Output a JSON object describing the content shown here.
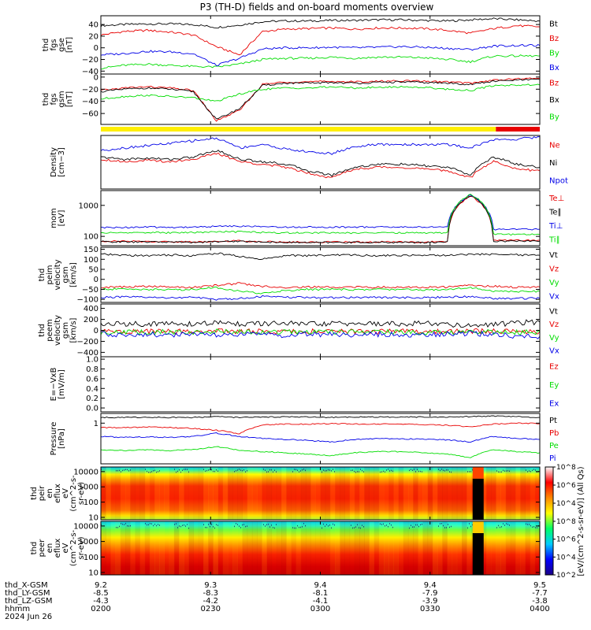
{
  "title": "P3 (TH-D) fields and on-board moments overview",
  "chart_data": {
    "type": "line",
    "title": "P3 (TH-D) fields and on-board moments overview",
    "time_range": [
      "0200",
      "0400"
    ],
    "time_axis": {
      "ticks": [
        "0200",
        "0230",
        "0300",
        "0330",
        "0400"
      ],
      "rows": [
        {
          "label": "thd_X-GSM",
          "values": [
            "9.2",
            "9.3",
            "9.4",
            "9.4",
            "9.5"
          ]
        },
        {
          "label": "thd_LY-GSM",
          "values": [
            "-8.5",
            "-8.3",
            "-8.1",
            "-7.9",
            "-7.7"
          ]
        },
        {
          "label": "thd_LZ-GSM",
          "values": [
            "-4.3",
            "-4.2",
            "-4.1",
            "-3.9",
            "-3.8"
          ]
        },
        {
          "label": "hhmm",
          "values": [
            "0200",
            "0230",
            "0300",
            "0330",
            "0400"
          ]
        }
      ],
      "date_label": "2024 Jun 26"
    },
    "mode_bar": {
      "segments": [
        {
          "color": "#ffee00",
          "from": "0200",
          "to": "0348"
        },
        {
          "color": "#e80000",
          "from": "0348",
          "to": "0400"
        }
      ]
    },
    "panels": [
      {
        "ylabel": [
          "thd",
          "fgs",
          "gse",
          "[nT]"
        ],
        "ylim": [
          -45,
          55
        ],
        "scale": "linear",
        "yticks": [
          "40",
          "20",
          "0",
          "−20",
          "−40"
        ],
        "ytick_values": [
          40,
          20,
          0,
          -20,
          -40
        ],
        "series": [
          {
            "name": "Bt",
            "color": "#000000",
            "values": [
              38,
              40,
              41,
              41,
              40,
              35,
              39,
              45,
              46,
              46,
              47,
              47,
              48,
              48,
              47,
              46,
              48,
              50,
              48,
              46
            ]
          },
          {
            "name": "Bz",
            "color": "#e80000",
            "values": [
              22,
              28,
              30,
              27,
              22,
              2,
              -12,
              28,
              32,
              33,
              34,
              32,
              34,
              34,
              33,
              30,
              25,
              33,
              38,
              36
            ]
          },
          {
            "name": "By",
            "color": "#00dd00",
            "values": [
              -35,
              -30,
              -28,
              -30,
              -32,
              -33,
              -28,
              -20,
              -18,
              -18,
              -16,
              -18,
              -16,
              -16,
              -17,
              -20,
              -24,
              -14,
              -14,
              -14
            ]
          },
          {
            "name": "Bx",
            "color": "#0000e8",
            "values": [
              -12,
              -10,
              -6,
              -7,
              -10,
              -30,
              -18,
              -2,
              0,
              0,
              1,
              0,
              1,
              2,
              1,
              -1,
              -3,
              3,
              4,
              4
            ]
          }
        ]
      },
      {
        "ylabel": [
          "thd",
          "fgs",
          "gsm",
          "[nT]"
        ],
        "ylim": [
          -78,
          5
        ],
        "scale": "linear",
        "yticks": [
          "0",
          "−20",
          "−40",
          "−60"
        ],
        "ytick_values": [
          0,
          -20,
          -40,
          -60
        ],
        "series": [
          {
            "name": "Bz",
            "color": "#e80000",
            "values": [
              -22,
              -18,
              -16,
              -18,
              -22,
              -72,
              -55,
              -12,
              -8,
              -8,
              -7,
              -8,
              -7,
              -6,
              -7,
              -8,
              -10,
              -5,
              -3,
              -2
            ]
          },
          {
            "name": "Bx",
            "color": "#000000",
            "values": [
              -24,
              -20,
              -18,
              -20,
              -24,
              -70,
              -52,
              -14,
              -10,
              -10,
              -9,
              -10,
              -9,
              -8,
              -9,
              -10,
              -12,
              -7,
              -5,
              -4
            ]
          },
          {
            "name": "By",
            "color": "#00dd00",
            "values": [
              -36,
              -32,
              -30,
              -32,
              -34,
              -40,
              -28,
              -20,
              -18,
              -18,
              -16,
              -18,
              -17,
              -16,
              -17,
              -20,
              -22,
              -14,
              -13,
              -13
            ]
          }
        ]
      },
      {
        "ylabel": [
          "Density",
          "[cm−3]"
        ],
        "ylim": [
          0.2,
          3
        ],
        "scale": "log",
        "yticks": [],
        "ytick_values": [],
        "series": [
          {
            "name": "Ne",
            "color": "#e80000",
            "values": [
              0.9,
              0.8,
              0.85,
              0.8,
              0.9,
              1.2,
              0.8,
              0.7,
              0.6,
              0.45,
              0.35,
              0.55,
              0.6,
              0.6,
              0.55,
              0.5,
              0.35,
              0.8,
              0.55,
              0.5
            ]
          },
          {
            "name": "Ni",
            "color": "#000000",
            "values": [
              1.0,
              0.9,
              0.95,
              0.9,
              1.0,
              1.4,
              0.9,
              0.8,
              0.7,
              0.5,
              0.4,
              0.6,
              0.7,
              0.7,
              0.65,
              0.6,
              0.4,
              1.0,
              0.7,
              0.6
            ]
          },
          {
            "name": "Npot",
            "color": "#0000e8",
            "values": [
              1.4,
              1.6,
              1.8,
              2.0,
              2.3,
              2.6,
              1.6,
              1.9,
              1.5,
              1.3,
              1.2,
              1.7,
              1.9,
              1.9,
              1.9,
              1.9,
              1.6,
              2.4,
              2.5,
              2.8
            ]
          }
        ]
      },
      {
        "ylabel": [
          "mom",
          "[eV]"
        ],
        "ylim": [
          50,
          3000
        ],
        "scale": "log",
        "yticks": [
          "1000",
          "100"
        ],
        "ytick_values": [
          1000,
          100
        ],
        "series": [
          {
            "name": "Te⊥",
            "color": "#e80000",
            "values": [
              70,
              70,
              68,
              68,
              66,
              70,
              72,
              68,
              66,
              65,
              66,
              66,
              66,
              66,
              66,
              67,
              2000,
              75,
              75,
              75
            ]
          },
          {
            "name": "Te∥",
            "color": "#000000",
            "values": [
              68,
              66,
              66,
              66,
              64,
              68,
              70,
              66,
              64,
              63,
              64,
              64,
              64,
              64,
              64,
              65,
              2100,
              70,
              70,
              70
            ]
          },
          {
            "name": "Ti⊥",
            "color": "#0000e8",
            "values": [
              190,
              195,
              200,
              195,
              200,
              210,
              215,
              205,
              200,
              200,
              200,
              200,
              200,
              200,
              200,
              200,
              2200,
              170,
              170,
              170
            ]
          },
          {
            "name": "Ti∥",
            "color": "#00dd00",
            "values": [
              130,
              130,
              135,
              130,
              135,
              140,
              140,
              135,
              130,
              130,
              130,
              130,
              130,
              130,
              130,
              130,
              2300,
              115,
              115,
              115
            ]
          }
        ]
      },
      {
        "ylabel": [
          "thd",
          "peim",
          "velocity",
          "gsm",
          "[km/s]"
        ],
        "ylim": [
          -115,
          160
        ],
        "scale": "linear",
        "yticks": [
          "150",
          "100",
          "50",
          "0",
          "−50",
          "−100"
        ],
        "ytick_values": [
          150,
          100,
          50,
          0,
          -50,
          -100
        ],
        "series": [
          {
            "name": "Vt",
            "color": "#000000",
            "values": [
              125,
              120,
              118,
              122,
              118,
              130,
              115,
              100,
              120,
              118,
              122,
              120,
              118,
              120,
              122,
              120,
              125,
              125,
              122,
              120
            ]
          },
          {
            "name": "Vz",
            "color": "#e80000",
            "values": [
              -40,
              -38,
              -35,
              -38,
              -40,
              -30,
              -20,
              -35,
              -40,
              -38,
              -40,
              -38,
              -40,
              -38,
              -40,
              -38,
              -30,
              -35,
              -40,
              -38
            ]
          },
          {
            "name": "Vy",
            "color": "#00dd00",
            "values": [
              -50,
              -48,
              -50,
              -52,
              -50,
              -40,
              -60,
              -70,
              -55,
              -50,
              -50,
              -52,
              -50,
              -50,
              -52,
              -50,
              -40,
              -60,
              -60,
              -60
            ]
          },
          {
            "name": "Vx",
            "color": "#0000e8",
            "values": [
              -90,
              -88,
              -90,
              -92,
              -90,
              -100,
              -95,
              -85,
              -90,
              -90,
              -92,
              -90,
              -90,
              -92,
              -90,
              -90,
              -85,
              -95,
              -95,
              -95
            ]
          }
        ]
      },
      {
        "ylabel": [
          "thd",
          "peem",
          "velocity",
          "gsm",
          "[km/s]"
        ],
        "ylim": [
          -480,
          480
        ],
        "scale": "linear",
        "yticks": [
          "400",
          "200",
          "0",
          "−200",
          "−400"
        ],
        "ytick_values": [
          400,
          200,
          0,
          -200,
          -400
        ],
        "series": [
          {
            "name": "Vt",
            "color": "#000000",
            "values": [
              110,
              120,
              115,
              125,
              110,
              140,
              120,
              115,
              130,
              110,
              120,
              125,
              115,
              120,
              130,
              110,
              90,
              100,
              140,
              150
            ]
          },
          {
            "name": "Vz",
            "color": "#e80000",
            "values": [
              -20,
              -25,
              -20,
              -25,
              -20,
              -15,
              -20,
              -20,
              -25,
              -20,
              -20,
              -25,
              -20,
              -20,
              -25,
              -20,
              -15,
              -20,
              -25,
              -20
            ]
          },
          {
            "name": "Vy",
            "color": "#00dd00",
            "values": [
              -30,
              -30,
              -35,
              -30,
              -30,
              -25,
              -30,
              -30,
              -35,
              -30,
              -30,
              -35,
              -30,
              -30,
              -35,
              -30,
              -25,
              -30,
              -35,
              -30
            ]
          },
          {
            "name": "Vx",
            "color": "#0000e8",
            "values": [
              -60,
              -80,
              -70,
              -90,
              -60,
              -100,
              -80,
              -70,
              -90,
              -60,
              -80,
              -90,
              -70,
              -80,
              -90,
              -70,
              -50,
              -80,
              -100,
              -110
            ]
          }
        ]
      },
      {
        "ylabel": [
          "E=−VxB",
          "[mV/m]"
        ],
        "ylim": [
          -0.08,
          1.05
        ],
        "scale": "linear",
        "yticks": [
          "1.0",
          "0.8",
          "0.6",
          "0.4",
          "0.2",
          "0.0"
        ],
        "ytick_values": [
          1.0,
          0.8,
          0.6,
          0.4,
          0.2,
          0.0
        ],
        "series": [
          {
            "name": "Ez",
            "color": "#e80000",
            "values": []
          },
          {
            "name": "Ey",
            "color": "#00dd00",
            "values": []
          },
          {
            "name": "Ex",
            "color": "#0000e8",
            "values": []
          }
        ]
      },
      {
        "ylabel": [
          "Pressure",
          "[nPa]"
        ],
        "ylim": [
          0.01,
          3
        ],
        "scale": "log",
        "yticks": [
          "1"
        ],
        "ytick_values": [
          1
        ],
        "series": [
          {
            "name": "Pt",
            "color": "#000000",
            "values": [
              1.9,
              1.9,
              1.95,
              1.9,
              1.9,
              2.1,
              1.9,
              2.0,
              2.05,
              2.0,
              1.9,
              2.0,
              2.0,
              2.0,
              2.0,
              2.0,
              2.1,
              2.2,
              2.1,
              1.9
            ]
          },
          {
            "name": "Pb",
            "color": "#e80000",
            "values": [
              0.6,
              0.6,
              0.65,
              0.6,
              0.55,
              0.45,
              0.3,
              0.8,
              0.9,
              0.9,
              0.95,
              0.9,
              0.9,
              0.9,
              0.85,
              0.8,
              0.65,
              0.9,
              1.0,
              0.95
            ]
          },
          {
            "name": "Pe",
            "color": "#00dd00",
            "values": [
              0.05,
              0.045,
              0.05,
              0.045,
              0.05,
              0.07,
              0.045,
              0.04,
              0.035,
              0.03,
              0.025,
              0.035,
              0.04,
              0.04,
              0.035,
              0.03,
              0.02,
              0.05,
              0.04,
              0.035
            ]
          },
          {
            "name": "Pi",
            "color": "#0000e8",
            "values": [
              0.22,
              0.2,
              0.21,
              0.2,
              0.22,
              0.32,
              0.22,
              0.18,
              0.16,
              0.14,
              0.12,
              0.16,
              0.17,
              0.17,
              0.16,
              0.15,
              0.12,
              0.22,
              0.18,
              0.16
            ]
          }
        ]
      },
      {
        "type": "heatmap",
        "ylabel": [
          "thd",
          "peir",
          "en",
          "eflux",
          "eV",
          "(cm^2-s-",
          "sr-eV)"
        ],
        "ylim": [
          7,
          20000
        ],
        "scale": "log",
        "yticks": [
          "10000",
          "1000",
          "100",
          "10"
        ],
        "ytick_values": [
          10000,
          1000,
          100,
          10
        ]
      },
      {
        "type": "heatmap",
        "ylabel": [
          "thd",
          "peer",
          "en",
          "eflux",
          "eV",
          "(cm^2-s-",
          "sr-eV)"
        ],
        "ylim": [
          7,
          20000
        ],
        "scale": "log",
        "yticks": [
          "10000",
          "1000",
          "100",
          "10"
        ],
        "ytick_values": [
          10000,
          1000,
          100,
          10
        ]
      }
    ],
    "colorbar": {
      "label": "[eV/(cm^2-s-sr-eV)] (All Qs)",
      "ticks": [
        "10^8",
        "10^6",
        "10^4",
        "10^2"
      ],
      "ticks_upper": [
        "10^8",
        "10^6",
        "10^4"
      ],
      "ticks_lower": [
        "10^8",
        "10^6",
        "10^4",
        "10^2"
      ],
      "range": [
        100,
        100000000
      ],
      "colors": [
        "#1a0088",
        "#0000ff",
        "#00ccff",
        "#00ff66",
        "#ffff00",
        "#ff8800",
        "#ff0000",
        "#ffffff"
      ]
    }
  }
}
